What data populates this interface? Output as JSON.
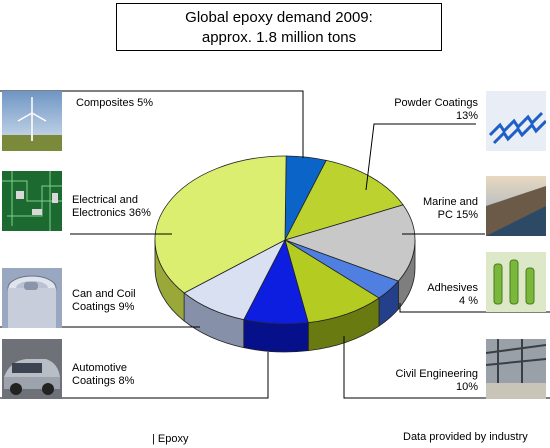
{
  "title_line1": "Global epoxy demand 2009:",
  "title_line2": "approx. 1.8 million tons",
  "footer_left": "| Epoxy",
  "footer_right": "Data provided by industry",
  "chart_data": {
    "type": "pie",
    "title": "Global epoxy demand 2009: approx. 1.8 million tons",
    "legend": "none",
    "slices": [
      {
        "label_line1": "Composites 5%",
        "label_line2": "",
        "value": 5,
        "color": "#0b64c8",
        "side": "#06356e"
      },
      {
        "label_line1": "Powder Coatings",
        "label_line2": "13%",
        "value": 13,
        "color": "#bcd22e",
        "side": "#6a7a12"
      },
      {
        "label_line1": "Marine and",
        "label_line2": "PC 15%",
        "value": 15,
        "color": "#c8c8c8",
        "side": "#7e7e7e"
      },
      {
        "label_line1": "Adhesives",
        "label_line2": "4 %",
        "value": 4,
        "color": "#4f7fe0",
        "side": "#25408a"
      },
      {
        "label_line1": "Civil Engineering",
        "label_line2": "10%",
        "value": 10,
        "color": "#b4cc22",
        "side": "#687a10"
      },
      {
        "label_line1": "Automotive",
        "label_line2": "Coatings 8%",
        "value": 8,
        "color": "#0d1ee0",
        "side": "#06108a"
      },
      {
        "label_line1": "Can and Coil",
        "label_line2": "Coatings 9%",
        "value": 9,
        "color": "#d8e0f2",
        "side": "#8690a8"
      },
      {
        "label_line1": "Electrical and",
        "label_line2": "Electronics 36%",
        "value": 36,
        "color": "#dcee70",
        "side": "#9aa83a"
      }
    ]
  }
}
